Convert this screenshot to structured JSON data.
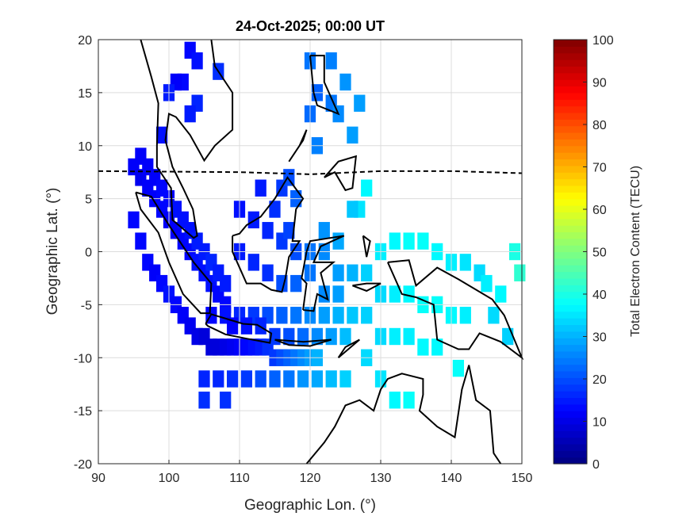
{
  "chart_data": {
    "type": "heatmap",
    "title": "24-Oct-2025; 00:00 UT",
    "xlabel": "Geographic Lon. (°)",
    "ylabel": "Geographic Lat. (°)",
    "xlim": [
      90,
      150
    ],
    "ylim": [
      -20,
      20
    ],
    "xticks": [
      "90",
      "100",
      "110",
      "120",
      "130",
      "140",
      "150"
    ],
    "yticks": [
      "20",
      "15",
      "10",
      "5",
      "0",
      "-5",
      "-10",
      "-15",
      "-20"
    ],
    "grid": true,
    "colorbar": {
      "label": "Total Electron Content (TECU)",
      "range": [
        0,
        100
      ],
      "ticks": [
        "100",
        "90",
        "80",
        "70",
        "60",
        "50",
        "40",
        "30",
        "20",
        "10",
        "0"
      ],
      "colormap": "jet",
      "placement": "right"
    },
    "magnetic_equator": [
      [
        90,
        7.6
      ],
      [
        110,
        7.5
      ],
      [
        120,
        7.3
      ],
      [
        130,
        7.6
      ],
      [
        140,
        7.6
      ],
      [
        150,
        7.4
      ]
    ],
    "points_format": [
      "lon",
      "lat",
      "tec"
    ],
    "points": [
      [
        95,
        8,
        12
      ],
      [
        96,
        7,
        11
      ],
      [
        97,
        6,
        12
      ],
      [
        98,
        5,
        12
      ],
      [
        99,
        4,
        13
      ],
      [
        100,
        3,
        12
      ],
      [
        101,
        2,
        12
      ],
      [
        102,
        1,
        13
      ],
      [
        103,
        0,
        13
      ],
      [
        104,
        -1,
        14
      ],
      [
        105,
        -2,
        14
      ],
      [
        106,
        -3,
        14
      ],
      [
        107,
        -4,
        13
      ],
      [
        108,
        -5,
        13
      ],
      [
        95,
        3,
        13
      ],
      [
        96,
        1,
        13
      ],
      [
        97,
        -1,
        13
      ],
      [
        98,
        -2,
        12
      ],
      [
        99,
        -3,
        13
      ],
      [
        100,
        -4,
        14
      ],
      [
        101,
        -5,
        13
      ],
      [
        102,
        -6,
        12
      ],
      [
        103,
        -7,
        11
      ],
      [
        104,
        -8,
        10
      ],
      [
        105,
        -8,
        9
      ],
      [
        106,
        -9,
        9
      ],
      [
        107,
        -9,
        9
      ],
      [
        108,
        -9,
        10
      ],
      [
        109,
        -9,
        11
      ],
      [
        110,
        -9,
        12
      ],
      [
        111,
        -9,
        13
      ],
      [
        112,
        -9,
        14
      ],
      [
        113,
        -9,
        15
      ],
      [
        114,
        -9,
        17
      ],
      [
        115,
        -10,
        18
      ],
      [
        116,
        -10,
        20
      ],
      [
        117,
        -10,
        22
      ],
      [
        118,
        -10,
        24
      ],
      [
        119,
        -10,
        26
      ],
      [
        120,
        -10,
        28
      ],
      [
        121,
        -10,
        30
      ],
      [
        96,
        9,
        12
      ],
      [
        97,
        8,
        12
      ],
      [
        98,
        7,
        12
      ],
      [
        99,
        6,
        13
      ],
      [
        100,
        5,
        13
      ],
      [
        101,
        4,
        14
      ],
      [
        102,
        3,
        14
      ],
      [
        103,
        2,
        14
      ],
      [
        104,
        1,
        15
      ],
      [
        105,
        0,
        15
      ],
      [
        106,
        -1,
        16
      ],
      [
        107,
        -2,
        15
      ],
      [
        108,
        -3,
        15
      ],
      [
        106,
        -6,
        13
      ],
      [
        108,
        -6,
        14
      ],
      [
        110,
        -6,
        16
      ],
      [
        112,
        -6,
        18
      ],
      [
        114,
        -6,
        20
      ],
      [
        116,
        -6,
        22
      ],
      [
        118,
        -6,
        24
      ],
      [
        120,
        -6,
        26
      ],
      [
        122,
        -6,
        28
      ],
      [
        124,
        -6,
        30
      ],
      [
        126,
        -6,
        32
      ],
      [
        109,
        -7,
        12
      ],
      [
        111,
        -7,
        14
      ],
      [
        113,
        -7,
        16
      ],
      [
        115,
        -8,
        18
      ],
      [
        117,
        -8,
        20
      ],
      [
        119,
        -8,
        23
      ],
      [
        121,
        -8,
        26
      ],
      [
        123,
        -8,
        28
      ],
      [
        125,
        -8,
        31
      ],
      [
        105,
        -12,
        16
      ],
      [
        107,
        -12,
        16
      ],
      [
        109,
        -12,
        17
      ],
      [
        111,
        -12,
        18
      ],
      [
        113,
        -12,
        20
      ],
      [
        115,
        -12,
        22
      ],
      [
        117,
        -12,
        24
      ],
      [
        119,
        -12,
        27
      ],
      [
        121,
        -12,
        29
      ],
      [
        123,
        -12,
        31
      ],
      [
        125,
        -12,
        33
      ],
      [
        105,
        -14,
        17
      ],
      [
        108,
        -14,
        17
      ],
      [
        110,
        4,
        14
      ],
      [
        112,
        3,
        15
      ],
      [
        114,
        2,
        16
      ],
      [
        116,
        1,
        18
      ],
      [
        118,
        0,
        20
      ],
      [
        110,
        0,
        15
      ],
      [
        112,
        -1,
        16
      ],
      [
        114,
        -2,
        17
      ],
      [
        116,
        -3,
        20
      ],
      [
        118,
        -3,
        22
      ],
      [
        113,
        6,
        15
      ],
      [
        115,
        4,
        17
      ],
      [
        117,
        2,
        19
      ],
      [
        120,
        0,
        24
      ],
      [
        122,
        0,
        26
      ],
      [
        124,
        -2,
        28
      ],
      [
        126,
        -2,
        30
      ],
      [
        122,
        -4,
        26
      ],
      [
        124,
        -4,
        28
      ],
      [
        120,
        -2,
        24
      ],
      [
        122,
        2,
        27
      ],
      [
        124,
        1,
        29
      ],
      [
        130,
        0,
        36
      ],
      [
        132,
        1,
        37
      ],
      [
        134,
        1,
        38
      ],
      [
        136,
        1,
        38
      ],
      [
        138,
        0,
        37
      ],
      [
        140,
        -1,
        36
      ],
      [
        142,
        -1,
        35
      ],
      [
        144,
        -2,
        34
      ],
      [
        130,
        -4,
        34
      ],
      [
        132,
        -4,
        36
      ],
      [
        134,
        -4,
        37
      ],
      [
        136,
        -5,
        38
      ],
      [
        138,
        -5,
        38
      ],
      [
        140,
        -6,
        37
      ],
      [
        142,
        -6,
        36
      ],
      [
        146,
        -6,
        34
      ],
      [
        148,
        -8,
        33
      ],
      [
        130,
        -8,
        34
      ],
      [
        132,
        -8,
        36
      ],
      [
        134,
        -8,
        36
      ],
      [
        136,
        -9,
        37
      ],
      [
        138,
        -9,
        37
      ],
      [
        128,
        -10,
        34
      ],
      [
        130,
        -12,
        35
      ],
      [
        132,
        -14,
        37
      ],
      [
        134,
        -14,
        38
      ],
      [
        141,
        -11,
        38
      ],
      [
        127,
        4,
        35
      ],
      [
        128,
        6,
        37
      ],
      [
        126,
        4,
        32
      ],
      [
        149,
        0,
        40
      ],
      [
        150,
        -2,
        42
      ],
      [
        128,
        -2,
        33
      ],
      [
        128,
        -6,
        33
      ],
      [
        145,
        -3,
        36
      ],
      [
        147,
        -4,
        37
      ],
      [
        103,
        19,
        13
      ],
      [
        104,
        18,
        14
      ],
      [
        102,
        16,
        13
      ],
      [
        101,
        16,
        12
      ],
      [
        100,
        15,
        15
      ],
      [
        107,
        17,
        17
      ],
      [
        104,
        14,
        16
      ],
      [
        103,
        13,
        15
      ],
      [
        99,
        11,
        14
      ],
      [
        116,
        6,
        18
      ],
      [
        117,
        7,
        20
      ],
      [
        118,
        5,
        22
      ],
      [
        121,
        10,
        25
      ],
      [
        120,
        13,
        23
      ],
      [
        121,
        15,
        22
      ],
      [
        123,
        14,
        24
      ],
      [
        124,
        13,
        26
      ],
      [
        126,
        11,
        28
      ],
      [
        125,
        16,
        27
      ],
      [
        123,
        18,
        25
      ],
      [
        120,
        18,
        24
      ],
      [
        127,
        14,
        28
      ]
    ],
    "coastlines": [
      [
        [
          95.3,
          5.6
        ],
        [
          97.5,
          5.2
        ],
        [
          100,
          2.5
        ],
        [
          103.5,
          -1
        ],
        [
          106,
          -3
        ],
        [
          105.8,
          -5.8
        ],
        [
          104.5,
          -5.8
        ],
        [
          102,
          -4
        ],
        [
          100,
          -1
        ],
        [
          98.5,
          1.8
        ],
        [
          96,
          4
        ],
        [
          95.3,
          5.6
        ]
      ],
      [
        [
          105.2,
          -6.8
        ],
        [
          106,
          -5.9
        ],
        [
          108,
          -6.3
        ],
        [
          110.5,
          -6.8
        ],
        [
          112.5,
          -6.9
        ],
        [
          114.5,
          -7.7
        ],
        [
          114.3,
          -8.6
        ],
        [
          111,
          -8.2
        ],
        [
          108,
          -7.8
        ],
        [
          105.5,
          -7
        ],
        [
          105.2,
          -6.8
        ]
      ],
      [
        [
          109,
          1.5
        ],
        [
          110,
          1.7
        ],
        [
          111,
          2.5
        ],
        [
          113,
          3.3
        ],
        [
          115,
          5
        ],
        [
          116.8,
          7
        ],
        [
          119,
          5
        ],
        [
          118,
          4
        ],
        [
          117.5,
          1
        ],
        [
          118.5,
          1
        ],
        [
          117,
          -0.5
        ],
        [
          116.5,
          -2.5
        ],
        [
          116,
          -3.8
        ],
        [
          114.5,
          -3.6
        ],
        [
          113,
          -3
        ],
        [
          111,
          -3
        ],
        [
          110,
          -1.5
        ],
        [
          109,
          0
        ],
        [
          109,
          1.5
        ]
      ],
      [
        [
          96,
          20
        ],
        [
          97.5,
          16.5
        ],
        [
          98.5,
          14
        ],
        [
          98.3,
          10
        ],
        [
          98.3,
          8
        ],
        [
          100.3,
          6
        ],
        [
          100.5,
          3
        ],
        [
          103.5,
          1.3
        ],
        [
          104,
          1.5
        ],
        [
          103.4,
          4
        ],
        [
          102,
          6
        ],
        [
          100.5,
          8
        ],
        [
          99.5,
          10.5
        ],
        [
          100,
          13
        ],
        [
          101,
          12.7
        ],
        [
          103,
          11
        ],
        [
          105,
          8.6
        ],
        [
          106.5,
          10
        ],
        [
          109,
          11.5
        ],
        [
          109,
          15
        ],
        [
          106.5,
          17.5
        ],
        [
          106,
          20
        ]
      ],
      [
        [
          120,
          18.5
        ],
        [
          122,
          18.5
        ],
        [
          122,
          16
        ],
        [
          124,
          13
        ],
        [
          121,
          13.8
        ],
        [
          120.5,
          15
        ],
        [
          120,
          18.5
        ]
      ],
      [
        [
          122,
          7
        ],
        [
          124,
          8.5
        ],
        [
          126.5,
          9
        ],
        [
          126,
          6
        ],
        [
          125,
          5.8
        ],
        [
          123.5,
          7.5
        ],
        [
          122,
          7
        ]
      ],
      [
        [
          117,
          8.5
        ],
        [
          118.5,
          10
        ],
        [
          119.5,
          11.5
        ],
        [
          119,
          10.5
        ],
        [
          117,
          8.5
        ]
      ],
      [
        [
          119,
          -5.5
        ],
        [
          119.5,
          -3
        ],
        [
          118.8,
          -2.5
        ],
        [
          119.5,
          0
        ],
        [
          120,
          1
        ],
        [
          124.8,
          1.5
        ],
        [
          121.5,
          0.5
        ],
        [
          120.5,
          -1
        ],
        [
          123.3,
          -1
        ],
        [
          121.5,
          -2
        ],
        [
          122.5,
          -4.5
        ],
        [
          121,
          -4
        ],
        [
          120.5,
          -5.6
        ],
        [
          119,
          -5.5
        ]
      ],
      [
        [
          131,
          -1
        ],
        [
          134,
          -0.8
        ],
        [
          135,
          -3.2
        ],
        [
          138,
          -1.5
        ],
        [
          141,
          -2.6
        ],
        [
          145.8,
          -4.5
        ],
        [
          147.5,
          -6
        ],
        [
          150,
          -10
        ],
        [
          147,
          -8.5
        ],
        [
          144,
          -7.7
        ],
        [
          142.5,
          -9.2
        ],
        [
          141,
          -9.2
        ],
        [
          138,
          -8.3
        ],
        [
          137.5,
          -5
        ],
        [
          135,
          -4.3
        ],
        [
          133,
          -4
        ],
        [
          132,
          -2.5
        ],
        [
          131,
          -1
        ]
      ],
      [
        [
          119.5,
          -20
        ],
        [
          122,
          -18
        ],
        [
          123.5,
          -16.5
        ],
        [
          125,
          -14.5
        ],
        [
          127,
          -14
        ],
        [
          129,
          -15
        ],
        [
          130,
          -13
        ],
        [
          131,
          -12
        ],
        [
          133,
          -11.5
        ],
        [
          136,
          -12
        ],
        [
          136,
          -13.5
        ],
        [
          135.5,
          -15
        ],
        [
          138,
          -16.5
        ],
        [
          140.5,
          -17.5
        ],
        [
          141.5,
          -13
        ],
        [
          142.5,
          -10.7
        ],
        [
          143.5,
          -14
        ],
        [
          145.5,
          -15
        ],
        [
          146,
          -19
        ],
        [
          147,
          -20
        ]
      ],
      [
        [
          124,
          -10
        ],
        [
          127,
          -8.3
        ],
        [
          125,
          -9
        ],
        [
          124,
          -10
        ]
      ],
      [
        [
          115,
          -8.3
        ],
        [
          117,
          -8.4
        ],
        [
          119,
          -8.5
        ],
        [
          121,
          -8.4
        ],
        [
          123,
          -8.3
        ],
        [
          120,
          -8.9
        ],
        [
          117,
          -8.8
        ],
        [
          115,
          -8.3
        ]
      ],
      [
        [
          127.5,
          1.5
        ],
        [
          128,
          -0.5
        ],
        [
          128.5,
          1
        ],
        [
          127.5,
          1.5
        ]
      ],
      [
        [
          126,
          -3.2
        ],
        [
          128,
          -3
        ],
        [
          130,
          -3
        ],
        [
          128,
          -3.7
        ],
        [
          126,
          -3.2
        ]
      ]
    ]
  }
}
